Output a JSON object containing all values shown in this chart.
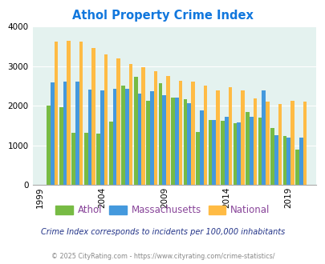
{
  "title": "Athol Property Crime Index",
  "years": [
    2000,
    2001,
    2002,
    2003,
    2004,
    2005,
    2006,
    2007,
    2008,
    2009,
    2010,
    2011,
    2012,
    2013,
    2014,
    2015,
    2016,
    2017,
    2018,
    2019,
    2020
  ],
  "athol": [
    2000,
    1950,
    1320,
    1310,
    1300,
    1600,
    2500,
    2720,
    2130,
    2560,
    2200,
    2160,
    1330,
    1640,
    1610,
    1560,
    1840,
    1700,
    1430,
    1240,
    890
  ],
  "massachusetts": [
    2580,
    2610,
    2600,
    2400,
    2380,
    2430,
    2430,
    2310,
    2360,
    2270,
    2200,
    2060,
    1880,
    1640,
    1710,
    1580,
    1720,
    2380,
    1260,
    1200,
    1190
  ],
  "national": [
    3620,
    3630,
    3610,
    3450,
    3290,
    3190,
    3060,
    2960,
    2870,
    2750,
    2630,
    2600,
    2510,
    2380,
    2460,
    2380,
    2190,
    2110,
    2050,
    2120,
    2100
  ],
  "athol_color": "#77bb44",
  "massachusetts_color": "#4499dd",
  "national_color": "#ffbb44",
  "bg_color": "#e4f2ef",
  "title_color": "#1177dd",
  "legend_label_color": "#884499",
  "note_color": "#223388",
  "footnote_color": "#888888",
  "note_text": "Crime Index corresponds to incidents per 100,000 inhabitants",
  "footnote_text": "© 2025 CityRating.com - https://www.cityrating.com/crime-statistics/",
  "xlim_left": 1999,
  "xlim_right": 2021,
  "ylim": [
    0,
    4000
  ],
  "yticks": [
    0,
    1000,
    2000,
    3000,
    4000
  ],
  "xtick_labels": [
    "1999",
    "2004",
    "2009",
    "2014",
    "2019"
  ],
  "xtick_positions": [
    1999,
    2004,
    2009,
    2014,
    2019
  ],
  "bar_width": 0.3
}
